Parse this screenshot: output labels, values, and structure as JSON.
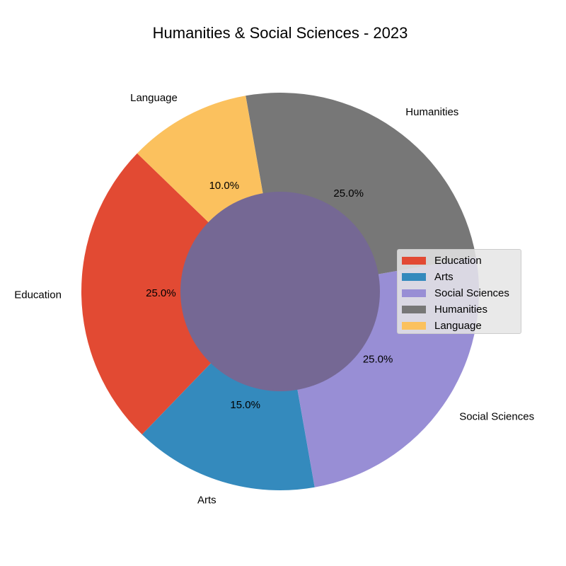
{
  "chart_data": {
    "type": "pie",
    "title": "Humanities & Social Sciences - 2023",
    "donut": true,
    "center_color": "#756894",
    "categories": [
      "Education",
      "Arts",
      "Social Sciences",
      "Humanities",
      "Language"
    ],
    "values": [
      25.0,
      15.0,
      25.0,
      25.0,
      10.0
    ],
    "percent_labels": [
      "25.0%",
      "15.0%",
      "25.0%",
      "25.0%",
      "10.0%"
    ],
    "colors": [
      "#E24A33",
      "#348ABD",
      "#988ED5",
      "#777777",
      "#FBC15E"
    ],
    "legend_position": "center-right"
  }
}
